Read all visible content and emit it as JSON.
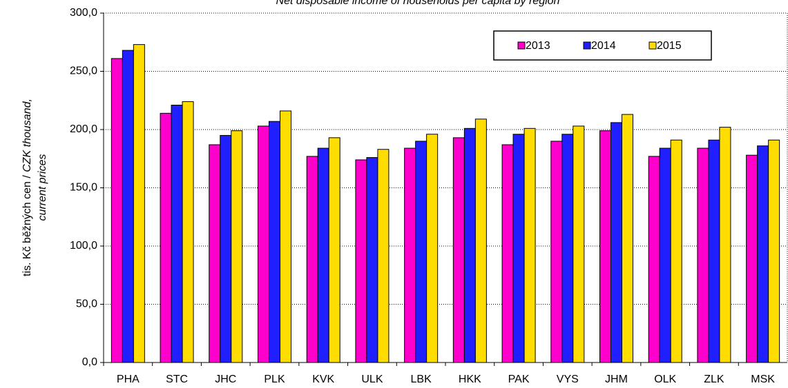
{
  "chart_data": {
    "type": "bar",
    "title": "Net disposable income of households per capita by region",
    "ylabel": [
      "tis. Kč běžných cen / ",
      "CZK thousand,",
      "current prices"
    ],
    "categories": [
      "PHA",
      "STC",
      "JHC",
      "PLK",
      "KVK",
      "ULK",
      "LBK",
      "HKK",
      "PAK",
      "VYS",
      "JHM",
      "OLK",
      "ZLK",
      "MSK"
    ],
    "series": [
      {
        "name": "2013",
        "color": "#ff00cc",
        "values": [
          261,
          214,
          187,
          203,
          177,
          174,
          184,
          193,
          187,
          190,
          199,
          177,
          184,
          178
        ]
      },
      {
        "name": "2014",
        "color": "#1f1fff",
        "values": [
          268,
          221,
          195,
          207,
          184,
          176,
          190,
          201,
          196,
          196,
          206,
          184,
          191,
          186
        ]
      },
      {
        "name": "2015",
        "color": "#ffdd00",
        "values": [
          273,
          224,
          199,
          216,
          193,
          183,
          196,
          209,
          201,
          203,
          213,
          191,
          202,
          191
        ]
      }
    ],
    "ylim": [
      0,
      300
    ],
    "yticks": [
      {
        "value": 0,
        "label": "0,0"
      },
      {
        "value": 50,
        "label": "50,0"
      },
      {
        "value": 100,
        "label": "100,0"
      },
      {
        "value": 150,
        "label": "150,0"
      },
      {
        "value": 200,
        "label": "200,0"
      },
      {
        "value": 250,
        "label": "250,0"
      },
      {
        "value": 300,
        "label": "300,0"
      }
    ],
    "grid": true,
    "legend": "upper right"
  }
}
